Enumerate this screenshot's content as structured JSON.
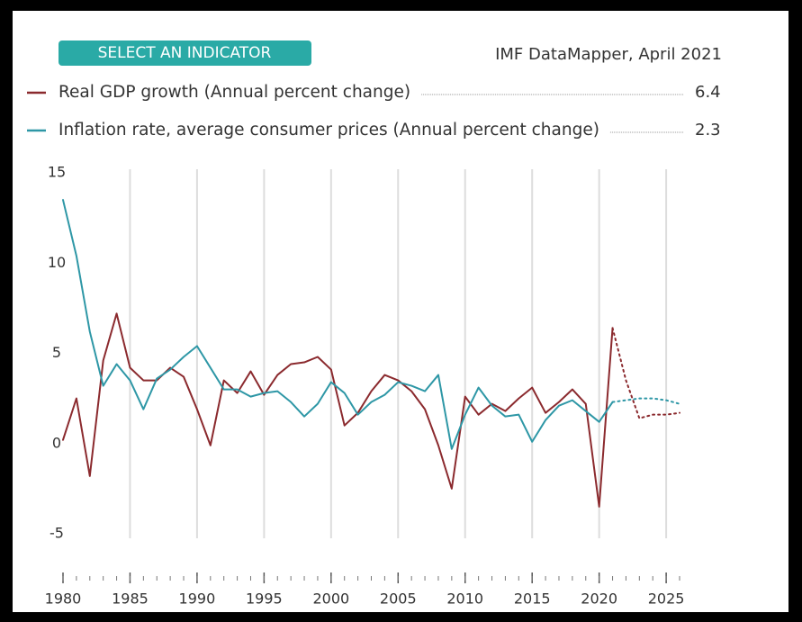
{
  "chart_data": {
    "type": "line",
    "button": "SELECT AN INDICATOR",
    "source": "IMF DataMapper, April 2021",
    "x": [
      1980,
      1981,
      1982,
      1983,
      1984,
      1985,
      1986,
      1987,
      1988,
      1989,
      1990,
      1991,
      1992,
      1993,
      1994,
      1995,
      1996,
      1997,
      1998,
      1999,
      2000,
      2001,
      2002,
      2003,
      2004,
      2005,
      2006,
      2007,
      2008,
      2009,
      2010,
      2011,
      2012,
      2013,
      2014,
      2015,
      2016,
      2017,
      2018,
      2019,
      2020,
      2021,
      2022,
      2023,
      2024,
      2025,
      2026
    ],
    "projection_from": 2021,
    "series": [
      {
        "name": "Real GDP growth (Annual percent change)",
        "color": "#8b2a2e",
        "legend_value_index": 41,
        "values": [
          0.2,
          2.5,
          -1.8,
          4.6,
          7.2,
          4.2,
          3.5,
          3.5,
          4.2,
          3.7,
          1.9,
          -0.1,
          3.5,
          2.8,
          4.0,
          2.7,
          3.8,
          4.4,
          4.5,
          4.8,
          4.1,
          1.0,
          1.7,
          2.9,
          3.8,
          3.5,
          2.9,
          1.9,
          -0.1,
          -2.5,
          2.6,
          1.6,
          2.2,
          1.8,
          2.5,
          3.1,
          1.7,
          2.3,
          3.0,
          2.2,
          -3.5,
          6.4,
          3.5,
          1.4,
          1.6,
          1.6,
          1.7
        ]
      },
      {
        "name": "Inflation rate, average consumer prices (Annual percent change)",
        "color": "#2e97a6",
        "legend_value_index": 41,
        "values": [
          13.5,
          10.4,
          6.2,
          3.2,
          4.4,
          3.5,
          1.9,
          3.6,
          4.1,
          4.8,
          5.4,
          4.2,
          3.0,
          3.0,
          2.6,
          2.8,
          2.9,
          2.3,
          1.5,
          2.2,
          3.4,
          2.8,
          1.6,
          2.3,
          2.7,
          3.4,
          3.2,
          2.9,
          3.8,
          -0.3,
          1.6,
          3.1,
          2.1,
          1.5,
          1.6,
          0.1,
          1.3,
          2.1,
          2.4,
          1.8,
          1.2,
          2.3,
          2.4,
          2.5,
          2.5,
          2.4,
          2.2
        ]
      }
    ],
    "xlim": [
      1980,
      2026
    ],
    "xticks": [
      1980,
      1985,
      1990,
      1995,
      2000,
      2005,
      2010,
      2015,
      2020,
      2025
    ],
    "ylim": [
      -5,
      15
    ],
    "yticks": [
      15,
      10,
      5,
      0,
      -5
    ],
    "grid": "x"
  }
}
